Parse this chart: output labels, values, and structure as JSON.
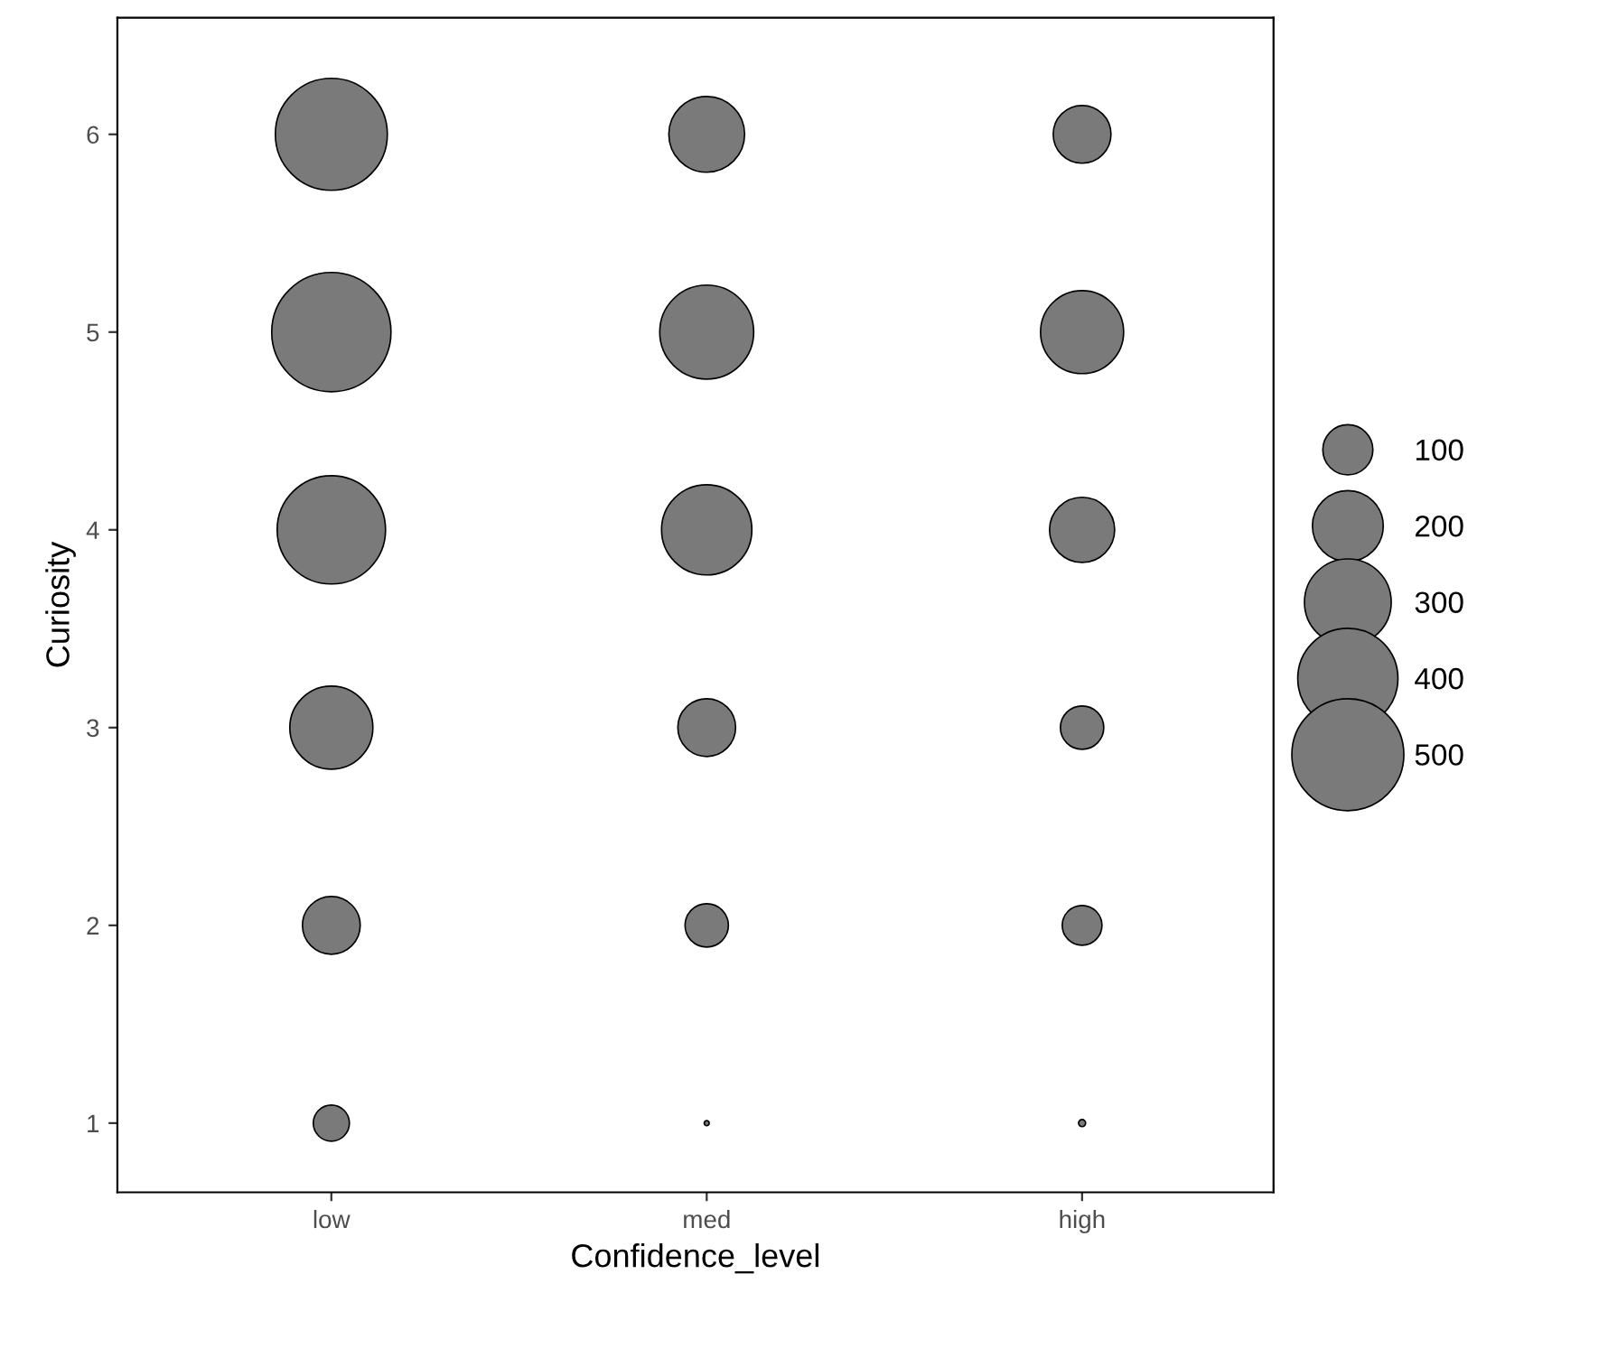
{
  "chart_data": {
    "type": "bubble",
    "xlabel": "Confidence_level",
    "ylabel": "Curiosity",
    "categories": [
      "low",
      "med",
      "high"
    ],
    "series": [
      {
        "color": "#7a7a7a",
        "x": [
          "low",
          "low",
          "low",
          "low",
          "low",
          "low"
        ],
        "values": [
          1,
          2,
          3,
          4,
          5,
          6
        ],
        "sizes": [
          52,
          133,
          275,
          468,
          567,
          500
        ]
      },
      {
        "color": "#7a7a7a",
        "x": [
          "med",
          "med",
          "med",
          "med",
          "med",
          "med"
        ],
        "values": [
          1,
          2,
          3,
          4,
          5,
          6
        ],
        "sizes": [
          1,
          75,
          133,
          325,
          352,
          229
        ]
      },
      {
        "color": "#7a7a7a",
        "x": [
          "high",
          "high",
          "high",
          "high",
          "high",
          "high"
        ],
        "values": [
          1,
          2,
          3,
          4,
          5,
          6
        ],
        "sizes": [
          2,
          63,
          75,
          169,
          275,
          133
        ]
      }
    ],
    "size_legend": [
      100,
      200,
      300,
      400,
      500
    ],
    "ylim": [
      0.65,
      6.59
    ],
    "yticks": [
      1,
      2,
      3,
      4,
      5,
      6
    ],
    "grid": false
  }
}
